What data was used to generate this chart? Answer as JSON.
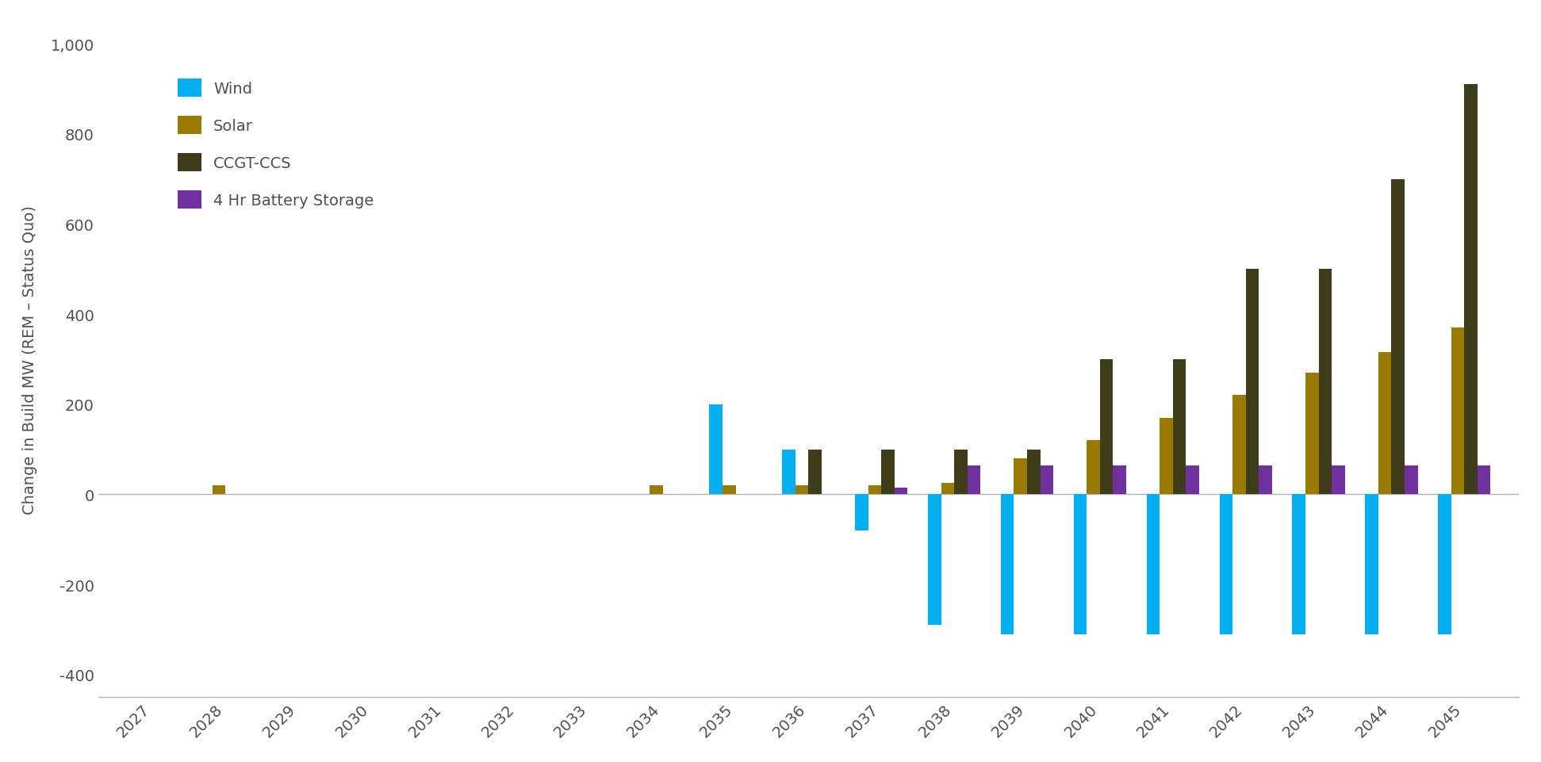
{
  "years": [
    2027,
    2028,
    2029,
    2030,
    2031,
    2032,
    2033,
    2034,
    2035,
    2036,
    2037,
    2038,
    2039,
    2040,
    2041,
    2042,
    2043,
    2044,
    2045
  ],
  "wind": [
    0,
    0,
    0,
    0,
    0,
    0,
    0,
    0,
    200,
    100,
    -80,
    -290,
    -310,
    -310,
    -310,
    -310,
    -310,
    -310,
    -310
  ],
  "solar": [
    0,
    20,
    0,
    0,
    0,
    0,
    0,
    20,
    20,
    20,
    20,
    25,
    80,
    120,
    170,
    220,
    270,
    315,
    370
  ],
  "ccgt_ccs": [
    0,
    0,
    0,
    0,
    0,
    0,
    0,
    0,
    0,
    100,
    100,
    100,
    100,
    300,
    300,
    500,
    500,
    700,
    910
  ],
  "battery": [
    0,
    0,
    0,
    0,
    0,
    0,
    0,
    0,
    0,
    0,
    15,
    65,
    65,
    65,
    65,
    65,
    65,
    65,
    65
  ],
  "wind_color": "#00B0F0",
  "solar_color": "#9B7A00",
  "ccgt_ccs_color": "#3D3D1A",
  "battery_color": "#7030A0",
  "ylabel": "Change in Build MW (REM – Status Quo)",
  "ylim": [
    -450,
    1050
  ],
  "yticks": [
    -400,
    -200,
    0,
    200,
    400,
    600,
    800,
    1000
  ],
  "background_color": "#ffffff",
  "legend_labels": [
    "Wind",
    "Solar",
    "CCGT-CCS",
    "4 Hr Battery Storage"
  ],
  "bar_width": 0.18,
  "grid_color": "#b0b0b0"
}
